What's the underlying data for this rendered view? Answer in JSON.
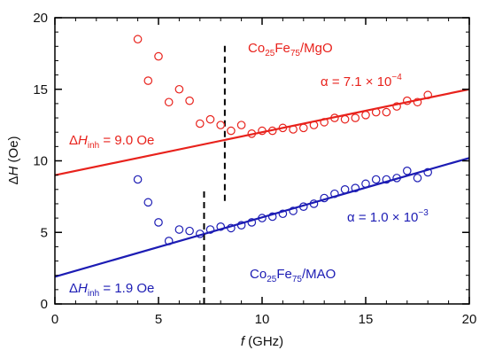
{
  "chart_data": {
    "type": "scatter",
    "xlabel_var": "f",
    "xlabel_unit": " (GHz)",
    "ylabel_delta": "Δ",
    "ylabel_var": "H",
    "ylabel_unit": " (Oe)",
    "xlim": [
      0,
      20
    ],
    "ylim": [
      0,
      20
    ],
    "x_ticks": [
      0,
      5,
      10,
      15,
      20
    ],
    "y_ticks": [
      0,
      5,
      10,
      15,
      20
    ],
    "grid": false,
    "series": [
      {
        "name": "Co25Fe75/MgO",
        "color": "#e8221c",
        "points": [
          [
            4.0,
            18.5
          ],
          [
            4.5,
            15.6
          ],
          [
            5.0,
            17.3
          ],
          [
            5.5,
            14.1
          ],
          [
            6.0,
            15.0
          ],
          [
            6.5,
            14.2
          ],
          [
            7.0,
            12.6
          ],
          [
            7.5,
            12.9
          ],
          [
            8.0,
            12.5
          ],
          [
            8.5,
            12.1
          ],
          [
            9.0,
            12.5
          ],
          [
            9.5,
            11.9
          ],
          [
            10.0,
            12.1
          ],
          [
            10.5,
            12.1
          ],
          [
            11.0,
            12.3
          ],
          [
            11.5,
            12.2
          ],
          [
            12.0,
            12.3
          ],
          [
            12.5,
            12.5
          ],
          [
            13.0,
            12.7
          ],
          [
            13.5,
            13.0
          ],
          [
            14.0,
            12.9
          ],
          [
            14.5,
            13.0
          ],
          [
            15.0,
            13.2
          ],
          [
            15.5,
            13.4
          ],
          [
            16.0,
            13.4
          ],
          [
            16.5,
            13.8
          ],
          [
            17.0,
            14.2
          ],
          [
            17.5,
            14.1
          ],
          [
            18.0,
            14.6
          ]
        ],
        "fit": {
          "intercept": 9.0,
          "slope": 0.3
        }
      },
      {
        "name": "Co25Fe75/MAO",
        "color": "#1c1cb4",
        "points": [
          [
            4.0,
            8.7
          ],
          [
            4.5,
            7.1
          ],
          [
            5.0,
            5.7
          ],
          [
            5.5,
            4.4
          ],
          [
            6.0,
            5.2
          ],
          [
            6.5,
            5.1
          ],
          [
            7.0,
            4.9
          ],
          [
            7.5,
            5.2
          ],
          [
            8.0,
            5.4
          ],
          [
            8.5,
            5.3
          ],
          [
            9.0,
            5.5
          ],
          [
            9.5,
            5.7
          ],
          [
            10.0,
            6.0
          ],
          [
            10.5,
            6.1
          ],
          [
            11.0,
            6.3
          ],
          [
            11.5,
            6.5
          ],
          [
            12.0,
            6.8
          ],
          [
            12.5,
            7.0
          ],
          [
            13.0,
            7.4
          ],
          [
            13.5,
            7.7
          ],
          [
            14.0,
            8.0
          ],
          [
            14.5,
            8.1
          ],
          [
            15.0,
            8.4
          ],
          [
            15.5,
            8.7
          ],
          [
            16.0,
            8.7
          ],
          [
            16.5,
            8.8
          ],
          [
            17.0,
            9.3
          ],
          [
            17.5,
            8.8
          ],
          [
            18.0,
            9.2
          ]
        ],
        "fit": {
          "intercept": 1.9,
          "slope": 0.415
        }
      }
    ],
    "dashed_lines": [
      {
        "x": 8.2,
        "y_from": 7.2,
        "y_to": 18.2,
        "color": "#000000"
      },
      {
        "x": 7.2,
        "y_from": 0.0,
        "y_to": 8.0,
        "color": "#000000"
      }
    ],
    "annotations": {
      "mgo_label": {
        "main": "Co",
        "s1": "25",
        "mid": "Fe",
        "s2": "75",
        "tail": "/MgO",
        "color": "#e8221c"
      },
      "mao_label": {
        "main": "Co",
        "s1": "25",
        "mid": "Fe",
        "s2": "75",
        "tail": "/MAO",
        "color": "#1c1cb4"
      },
      "mgo_alpha": {
        "text": "α = 7.1 × 10",
        "exp": "−4",
        "color": "#e8221c"
      },
      "mao_alpha": {
        "text": "α = 1.0 × 10",
        "exp": "−3",
        "color": "#1c1cb4"
      },
      "mgo_inh": {
        "delta": "Δ",
        "var": "H",
        "sub": "inh",
        "value": " = 9.0 Oe",
        "color": "#e8221c"
      },
      "mao_inh": {
        "delta": "Δ",
        "var": "H",
        "sub": "inh",
        "value": " = 1.9 Oe",
        "color": "#1c1cb4"
      }
    }
  }
}
